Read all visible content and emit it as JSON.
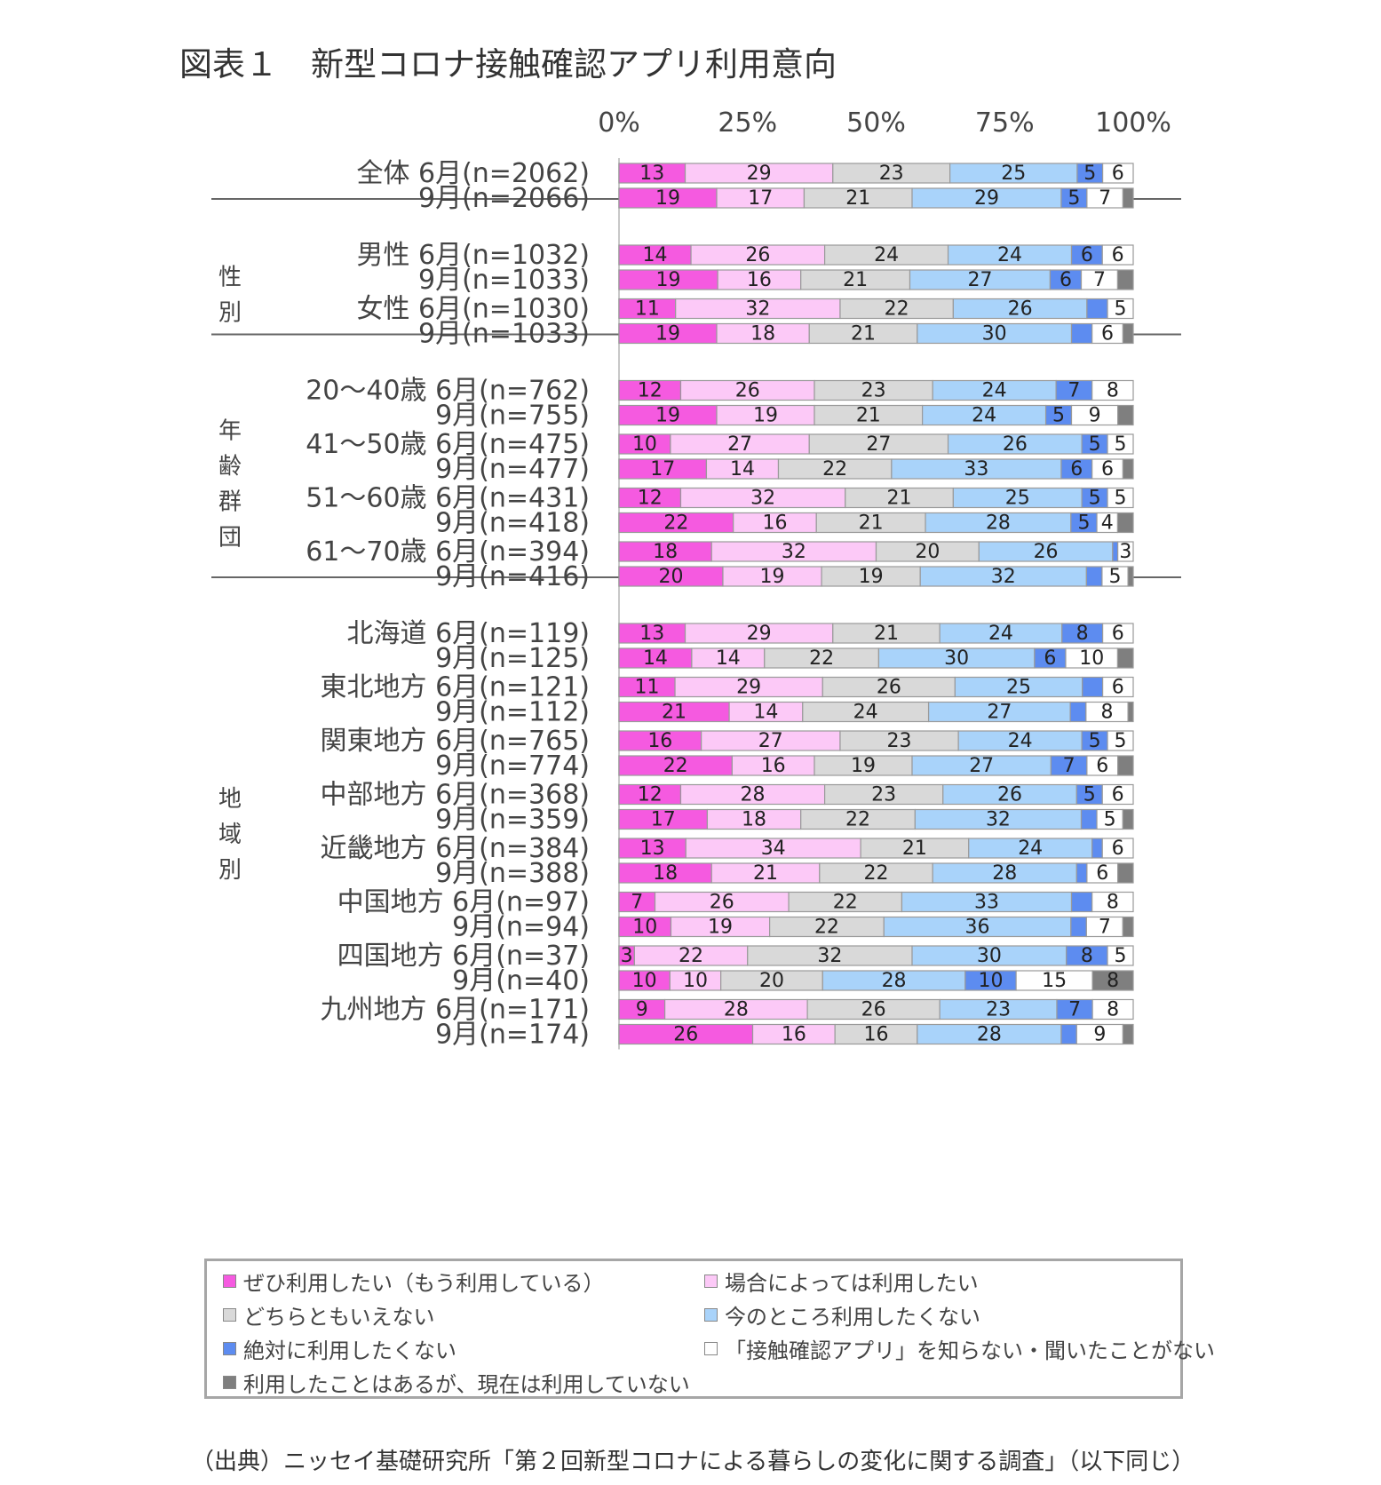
{
  "title": "図表１　新型コロナ接触確認アプリ利用意向",
  "source": "（出典）ニッセイ基礎研究所「第２回新型コロナによる暮らしの変化に関する調査」（以下同じ）",
  "chart_data": {
    "type": "bar",
    "orientation": "horizontal",
    "stacked": "percent",
    "xlim": [
      0,
      100
    ],
    "x_ticks": [
      "0%",
      "25%",
      "50%",
      "75%",
      "100%"
    ],
    "legend_position": "bottom",
    "series": [
      {
        "name": "ぜひ利用したい（もう利用している）",
        "color": "#f55ae0"
      },
      {
        "name": "場合によっては利用したい",
        "color": "#fcc9f7"
      },
      {
        "name": "どちらともいえない",
        "color": "#d9d9d9"
      },
      {
        "name": "今のところ利用したくない",
        "color": "#a9d3fa"
      },
      {
        "name": "絶対に利用したくない",
        "color": "#5d8cf0"
      },
      {
        "name": "「接触確認アプリ」を知らない・聞いたことがない",
        "color": "#ffffff"
      },
      {
        "name": "利用したことはあるが、現在は利用していない",
        "color": "#7f7f7f"
      }
    ],
    "legend_order": [
      0,
      1,
      2,
      3,
      4,
      5,
      6
    ],
    "groups": [
      {
        "label": "",
        "categories": [
          {
            "name": "全体",
            "rows": [
              {
                "label": "6月(n=2062)",
                "values": [
                  13,
                  29,
                  23,
                  25,
                  5,
                  6,
                  0
                ],
                "labels": [
                  "13",
                  "29",
                  "23",
                  "25",
                  "5",
                  "6",
                  ""
                ]
              },
              {
                "label": "9月(n=2066)",
                "values": [
                  19,
                  17,
                  21,
                  29,
                  5,
                  7,
                  2
                ],
                "labels": [
                  "19",
                  "17",
                  "21",
                  "29",
                  "5",
                  "7",
                  ""
                ]
              }
            ]
          }
        ]
      },
      {
        "label": "性別",
        "categories": [
          {
            "name": "男性",
            "rows": [
              {
                "label": "6月(n=1032)",
                "values": [
                  14,
                  26,
                  24,
                  24,
                  6,
                  6,
                  0
                ],
                "labels": [
                  "14",
                  "26",
                  "24",
                  "24",
                  "6",
                  "6",
                  ""
                ]
              },
              {
                "label": "9月(n=1033)",
                "values": [
                  19,
                  16,
                  21,
                  27,
                  6,
                  7,
                  3
                ],
                "labels": [
                  "19",
                  "16",
                  "21",
                  "27",
                  "6",
                  "7",
                  ""
                ]
              }
            ]
          },
          {
            "name": "女性",
            "rows": [
              {
                "label": "6月(n=1030)",
                "values": [
                  11,
                  32,
                  22,
                  26,
                  4,
                  5,
                  0
                ],
                "labels": [
                  "11",
                  "32",
                  "22",
                  "26",
                  "",
                  "5",
                  ""
                ]
              },
              {
                "label": "9月(n=1033)",
                "values": [
                  19,
                  18,
                  21,
                  30,
                  4,
                  6,
                  2
                ],
                "labels": [
                  "19",
                  "18",
                  "21",
                  "30",
                  "",
                  "6",
                  ""
                ]
              }
            ]
          }
        ]
      },
      {
        "label": "年齢群団",
        "categories": [
          {
            "name": "20～40歳",
            "rows": [
              {
                "label": "6月(n=762)",
                "values": [
                  12,
                  26,
                  23,
                  24,
                  7,
                  8,
                  0
                ],
                "labels": [
                  "12",
                  "26",
                  "23",
                  "24",
                  "7",
                  "8",
                  ""
                ]
              },
              {
                "label": "9月(n=755)",
                "values": [
                  19,
                  19,
                  21,
                  24,
                  5,
                  9,
                  3
                ],
                "labels": [
                  "19",
                  "19",
                  "21",
                  "24",
                  "5",
                  "9",
                  ""
                ]
              }
            ]
          },
          {
            "name": "41～50歳",
            "rows": [
              {
                "label": "6月(n=475)",
                "values": [
                  10,
                  27,
                  27,
                  26,
                  5,
                  5,
                  0
                ],
                "labels": [
                  "10",
                  "27",
                  "27",
                  "26",
                  "5",
                  "5",
                  ""
                ]
              },
              {
                "label": "9月(n=477)",
                "values": [
                  17,
                  14,
                  22,
                  33,
                  6,
                  6,
                  2
                ],
                "labels": [
                  "17",
                  "14",
                  "22",
                  "33",
                  "6",
                  "6",
                  ""
                ]
              }
            ]
          },
          {
            "name": "51～60歳",
            "rows": [
              {
                "label": "6月(n=431)",
                "values": [
                  12,
                  32,
                  21,
                  25,
                  5,
                  5,
                  0
                ],
                "labels": [
                  "12",
                  "32",
                  "21",
                  "25",
                  "5",
                  "5",
                  ""
                ]
              },
              {
                "label": "9月(n=418)",
                "values": [
                  22,
                  16,
                  21,
                  28,
                  5,
                  4,
                  3
                ],
                "labels": [
                  "22",
                  "16",
                  "21",
                  "28",
                  "5",
                  "4",
                  ""
                ]
              }
            ]
          },
          {
            "name": "61～70歳",
            "rows": [
              {
                "label": "6月(n=394)",
                "values": [
                  18,
                  32,
                  20,
                  26,
                  1,
                  3,
                  0
                ],
                "labels": [
                  "18",
                  "32",
                  "20",
                  "26",
                  "",
                  "3",
                  ""
                ]
              },
              {
                "label": "9月(n=416)",
                "values": [
                  20,
                  19,
                  19,
                  32,
                  3,
                  5,
                  1
                ],
                "labels": [
                  "20",
                  "19",
                  "19",
                  "32",
                  "",
                  "5",
                  ""
                ]
              }
            ]
          }
        ]
      },
      {
        "label": "地域別",
        "categories": [
          {
            "name": "北海道",
            "rows": [
              {
                "label": "6月(n=119)",
                "values": [
                  13,
                  29,
                  21,
                  24,
                  8,
                  6,
                  0
                ],
                "labels": [
                  "13",
                  "29",
                  "21",
                  "24",
                  "8",
                  "6",
                  ""
                ]
              },
              {
                "label": "9月(n=125)",
                "values": [
                  14,
                  14,
                  22,
                  30,
                  6,
                  10,
                  3
                ],
                "labels": [
                  "14",
                  "14",
                  "22",
                  "30",
                  "6",
                  "10",
                  ""
                ]
              }
            ]
          },
          {
            "name": "東北地方",
            "rows": [
              {
                "label": "6月(n=121)",
                "values": [
                  11,
                  29,
                  26,
                  25,
                  4,
                  6,
                  0
                ],
                "labels": [
                  "11",
                  "29",
                  "26",
                  "25",
                  "",
                  "6",
                  ""
                ]
              },
              {
                "label": "9月(n=112)",
                "values": [
                  21,
                  14,
                  24,
                  27,
                  3,
                  8,
                  1
                ],
                "labels": [
                  "21",
                  "14",
                  "24",
                  "27",
                  "",
                  "8",
                  ""
                ]
              }
            ]
          },
          {
            "name": "関東地方",
            "rows": [
              {
                "label": "6月(n=765)",
                "values": [
                  16,
                  27,
                  23,
                  24,
                  5,
                  5,
                  0
                ],
                "labels": [
                  "16",
                  "27",
                  "23",
                  "24",
                  "5",
                  "5",
                  ""
                ]
              },
              {
                "label": "9月(n=774)",
                "values": [
                  22,
                  16,
                  19,
                  27,
                  7,
                  6,
                  3
                ],
                "labels": [
                  "22",
                  "16",
                  "19",
                  "27",
                  "7",
                  "6",
                  ""
                ]
              }
            ]
          },
          {
            "name": "中部地方",
            "rows": [
              {
                "label": "6月(n=368)",
                "values": [
                  12,
                  28,
                  23,
                  26,
                  5,
                  6,
                  0
                ],
                "labels": [
                  "12",
                  "28",
                  "23",
                  "26",
                  "5",
                  "6",
                  ""
                ]
              },
              {
                "label": "9月(n=359)",
                "values": [
                  17,
                  18,
                  22,
                  32,
                  3,
                  5,
                  2
                ],
                "labels": [
                  "17",
                  "18",
                  "22",
                  "32",
                  "",
                  "5",
                  ""
                ]
              }
            ]
          },
          {
            "name": "近畿地方",
            "rows": [
              {
                "label": "6月(n=384)",
                "values": [
                  13,
                  34,
                  21,
                  24,
                  2,
                  6,
                  0
                ],
                "labels": [
                  "13",
                  "34",
                  "21",
                  "24",
                  "",
                  "6",
                  ""
                ]
              },
              {
                "label": "9月(n=388)",
                "values": [
                  18,
                  21,
                  22,
                  28,
                  2,
                  6,
                  3
                ],
                "labels": [
                  "18",
                  "21",
                  "22",
                  "28",
                  "",
                  "6",
                  ""
                ]
              }
            ]
          },
          {
            "name": "中国地方",
            "rows": [
              {
                "label": "6月(n=97)",
                "values": [
                  7,
                  26,
                  22,
                  33,
                  4,
                  8,
                  0
                ],
                "labels": [
                  "7",
                  "26",
                  "22",
                  "33",
                  "",
                  "8",
                  ""
                ]
              },
              {
                "label": "9月(n=94)",
                "values": [
                  10,
                  19,
                  22,
                  36,
                  3,
                  7,
                  2
                ],
                "labels": [
                  "10",
                  "19",
                  "22",
                  "36",
                  "",
                  "7",
                  ""
                ]
              }
            ]
          },
          {
            "name": "四国地方",
            "rows": [
              {
                "label": "6月(n=37)",
                "values": [
                  3,
                  22,
                  32,
                  30,
                  8,
                  5,
                  0
                ],
                "labels": [
                  "3",
                  "22",
                  "32",
                  "30",
                  "8",
                  "5",
                  ""
                ]
              },
              {
                "label": "9月(n=40)",
                "values": [
                  10,
                  10,
                  20,
                  28,
                  10,
                  15,
                  8
                ],
                "labels": [
                  "10",
                  "10",
                  "20",
                  "28",
                  "10",
                  "15",
                  "8"
                ]
              }
            ]
          },
          {
            "name": "九州地方",
            "rows": [
              {
                "label": "6月(n=171)",
                "values": [
                  9,
                  28,
                  26,
                  23,
                  7,
                  8,
                  0
                ],
                "labels": [
                  "9",
                  "28",
                  "26",
                  "23",
                  "7",
                  "8",
                  ""
                ]
              },
              {
                "label": "9月(n=174)",
                "values": [
                  26,
                  16,
                  16,
                  28,
                  3,
                  9,
                  2
                ],
                "labels": [
                  "26",
                  "16",
                  "16",
                  "28",
                  "",
                  "9",
                  ""
                ]
              }
            ]
          }
        ]
      }
    ]
  }
}
